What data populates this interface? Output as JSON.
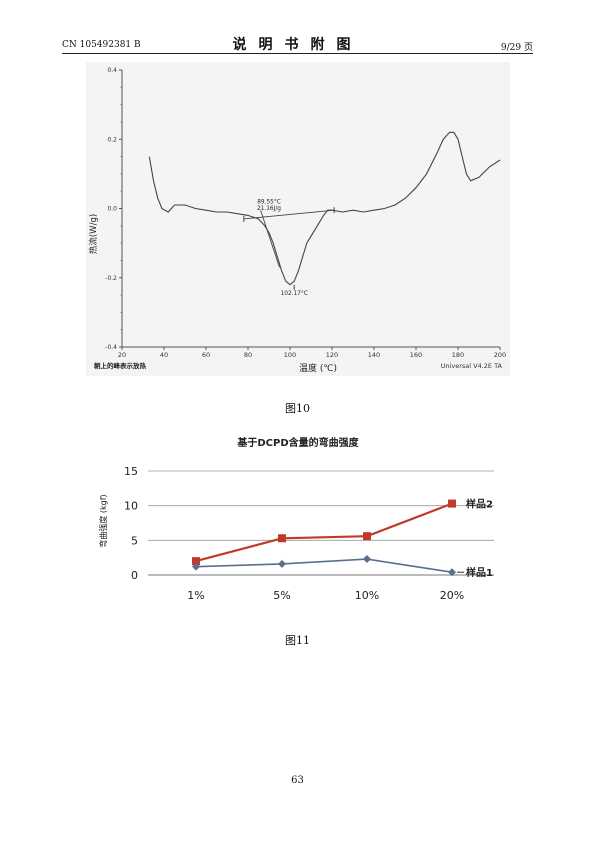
{
  "header": {
    "doc_number": "CN 105492381 B",
    "title": "说明书附图",
    "page_ref": "9/29 页"
  },
  "figures": [
    {
      "caption": "图10",
      "footnote_left": "朝上的峰表示放热",
      "footnote_right": "Universal V4.2E TA"
    },
    {
      "caption": "图11"
    }
  ],
  "page_number": "63",
  "chart_data": [
    {
      "type": "line",
      "xlabel": "温度 (℃)",
      "ylabel": "热流(W/g)",
      "xlim": [
        20,
        200
      ],
      "ylim": [
        -0.4,
        0.4
      ],
      "x_ticks": [
        20,
        40,
        60,
        80,
        100,
        120,
        140,
        160,
        180,
        200
      ],
      "y_ticks": [
        0.4,
        0.2,
        0.0,
        -0.2,
        -0.4
      ],
      "y_tick_labels": [
        "0.4",
        "0.2",
        "0.0",
        "-0.2",
        "-0.4"
      ],
      "series": [
        {
          "x": [
            33,
            35,
            37,
            39,
            42,
            45,
            50,
            55,
            60,
            65,
            70,
            75,
            80,
            85,
            88,
            90,
            92,
            94,
            96,
            98,
            100,
            102,
            104,
            106,
            108,
            110,
            112,
            114,
            116,
            118,
            120,
            125,
            130,
            135,
            140,
            145,
            150,
            155,
            160,
            165,
            170,
            173,
            176,
            178,
            180,
            182,
            184,
            186,
            190,
            195,
            200
          ],
          "y": [
            0.15,
            0.08,
            0.03,
            0.0,
            -0.01,
            0.01,
            0.01,
            0.0,
            -0.005,
            -0.01,
            -0.01,
            -0.015,
            -0.02,
            -0.03,
            -0.05,
            -0.07,
            -0.1,
            -0.14,
            -0.18,
            -0.21,
            -0.22,
            -0.21,
            -0.18,
            -0.14,
            -0.1,
            -0.08,
            -0.06,
            -0.04,
            -0.02,
            -0.005,
            -0.005,
            -0.01,
            -0.005,
            -0.01,
            -0.005,
            0.0,
            0.01,
            0.03,
            0.06,
            0.1,
            0.16,
            0.2,
            0.22,
            0.22,
            0.2,
            0.15,
            0.1,
            0.08,
            0.09,
            0.12,
            0.14
          ]
        }
      ],
      "baseline": {
        "x": [
          78,
          121
        ],
        "y": [
          -0.03,
          -0.005
        ]
      },
      "annotations": [
        {
          "text": "89.55°C",
          "x": 90,
          "y": 0.015
        },
        {
          "text": "21.16J/g",
          "x": 90,
          "y": -0.005
        },
        {
          "text": "102.17°C",
          "x": 102,
          "y": -0.25
        }
      ]
    },
    {
      "type": "line",
      "title": "基于DCPD含量的弯曲强度",
      "ylabel": "弯曲强度 (kgf)",
      "categories": [
        "1%",
        "5%",
        "10%",
        "20%"
      ],
      "ylim": [
        0,
        15
      ],
      "y_ticks": [
        0,
        5,
        10,
        15
      ],
      "grid": true,
      "series": [
        {
          "name": "样品2",
          "values": [
            2.0,
            5.3,
            5.6,
            10.3
          ],
          "marker": "square",
          "color": "#c0392b"
        },
        {
          "name": "样品1",
          "values": [
            1.2,
            1.6,
            2.3,
            0.4
          ],
          "marker": "diamond",
          "color": "#5a6f8e"
        }
      ]
    }
  ]
}
